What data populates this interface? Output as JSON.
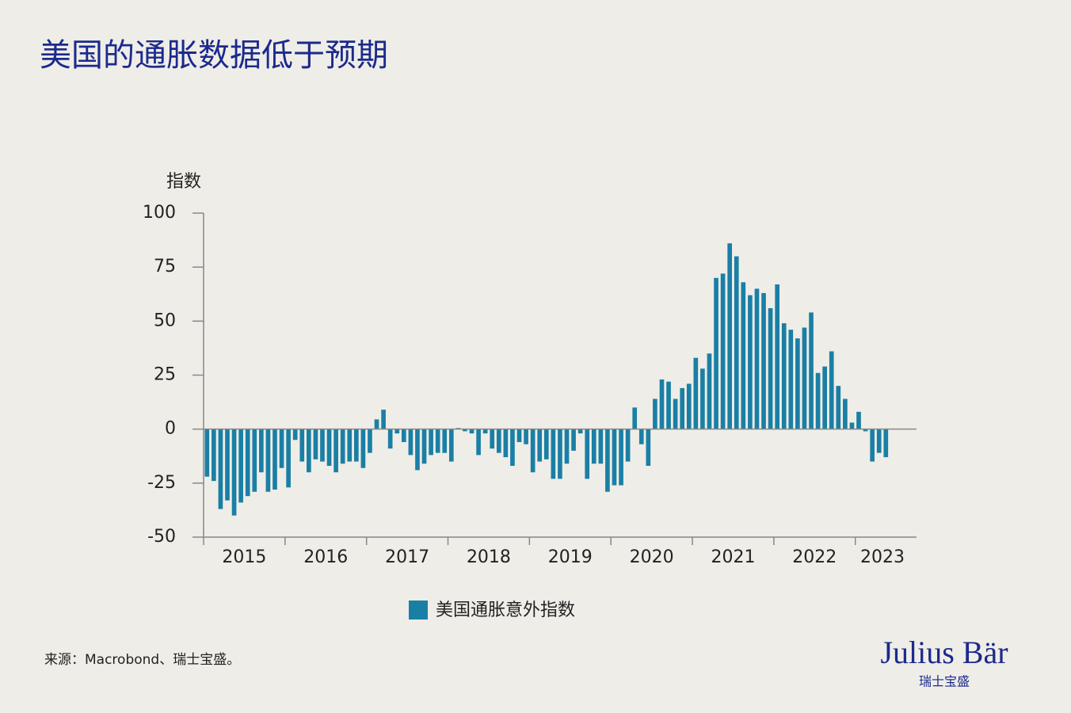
{
  "title": "美国的通胀数据低于预期",
  "source": "来源：Macrobond、瑞士宝盛。",
  "brand": "Julius Bär",
  "brand_sub": "瑞士宝盛",
  "chart_data": {
    "type": "bar",
    "y_label": "指数",
    "categories": [
      null,
      null,
      null,
      null,
      null,
      null,
      "2015",
      null,
      null,
      null,
      null,
      null,
      null,
      null,
      null,
      null,
      null,
      null,
      "2016",
      null,
      null,
      null,
      null,
      null,
      null,
      null,
      null,
      null,
      null,
      null,
      "2017",
      null,
      null,
      null,
      null,
      null,
      null,
      null,
      null,
      null,
      null,
      null,
      "2018",
      null,
      null,
      null,
      null,
      null,
      null,
      null,
      null,
      null,
      null,
      null,
      "2019",
      null,
      null,
      null,
      null,
      null,
      null,
      null,
      null,
      null,
      null,
      null,
      "2020",
      null,
      null,
      null,
      null,
      null,
      null,
      null,
      null,
      null,
      null,
      null,
      "2021",
      null,
      null,
      null,
      null,
      null,
      null,
      null,
      null,
      null,
      null,
      null,
      "2022",
      null,
      null,
      null,
      null,
      null,
      null,
      null,
      null,
      null,
      "2023"
    ],
    "series": [
      {
        "name": "美国通胀意外指数",
        "color": "#1a7fa5",
        "values": [
          -22,
          -24,
          -37,
          -33,
          -40,
          -34,
          -31,
          -29,
          -20,
          -29,
          -28,
          -18,
          -27,
          -5,
          -15,
          -20,
          -14,
          -15,
          -17,
          -20,
          -16,
          -15,
          -15,
          -18,
          -11,
          4.5,
          9,
          -9,
          -2,
          -6,
          -12,
          -19,
          -16,
          -12,
          -11,
          -11,
          -15,
          0.5,
          -1,
          -2,
          -12,
          -2,
          -9,
          -11,
          -13,
          -17,
          -6,
          -7,
          -20,
          -15,
          -14,
          -23,
          -23,
          -16,
          -10,
          -2,
          -23,
          -16,
          -16,
          -29,
          -26,
          -26,
          -15,
          10,
          -7,
          -17,
          14,
          23,
          22,
          14,
          19,
          21,
          33,
          28,
          35,
          70,
          72,
          86,
          80,
          68,
          62,
          65,
          63,
          56,
          67,
          49,
          46,
          42,
          47,
          54,
          26,
          29,
          36,
          20,
          14,
          3,
          8,
          -1,
          -15,
          -11,
          -13
        ]
      }
    ],
    "ylim": [
      -50,
      100
    ],
    "yticks": [
      -50,
      -25,
      0,
      25,
      50,
      75,
      100
    ]
  }
}
